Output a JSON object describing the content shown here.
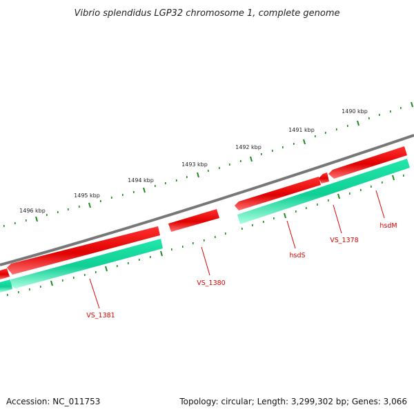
{
  "title": "Vibrio splendidus LGP32 chromosome 1, complete genome",
  "accession": "Accession: NC_011753",
  "summary": "Topology: circular; Length: 3,299,302 bp; Genes: 3,066",
  "kbp_labels": [
    "1490 kbp",
    "1491 kbp",
    "1492 kbp",
    "1493 kbp",
    "1494 kbp",
    "1495 kbp",
    "1496 kbp"
  ],
  "gene_labels": [
    "hsdM",
    "VS_1378",
    "hsdS",
    "VS_1380",
    "VS_1381"
  ],
  "colors": {
    "backbone": "#777777",
    "forward_gene": "#ee0000",
    "forward_gene_light": "#ff8080",
    "reverse_gene": "#10d8a0",
    "reverse_gene_light": "#aaffe0",
    "tick": "#1a8a1a",
    "label": "#dd0000"
  }
}
